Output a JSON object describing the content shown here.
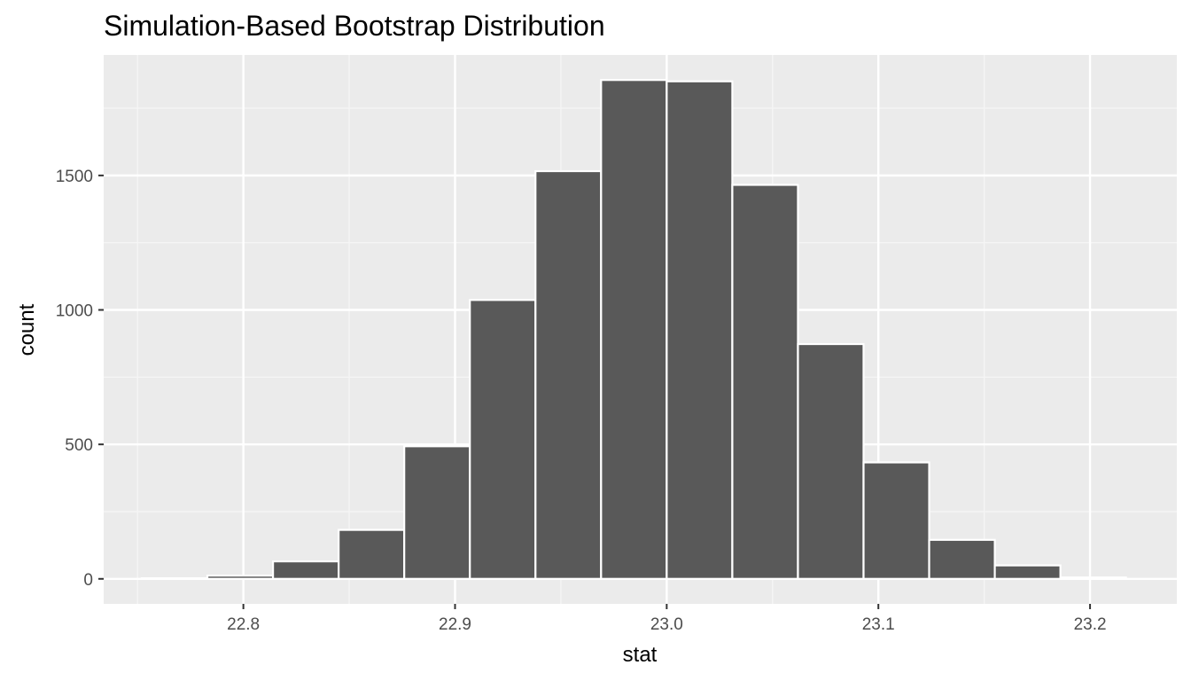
{
  "chart_data": {
    "type": "bar",
    "title": "Simulation-Based Bootstrap Distribution",
    "xlabel": "stat",
    "ylabel": "count",
    "bins": [
      {
        "x_min": 22.752,
        "x_max": 22.783,
        "count": 2
      },
      {
        "x_min": 22.783,
        "x_max": 22.814,
        "count": 12
      },
      {
        "x_min": 22.814,
        "x_max": 22.845,
        "count": 65
      },
      {
        "x_min": 22.845,
        "x_max": 22.876,
        "count": 182
      },
      {
        "x_min": 22.876,
        "x_max": 22.907,
        "count": 493
      },
      {
        "x_min": 22.907,
        "x_max": 22.938,
        "count": 1037
      },
      {
        "x_min": 22.938,
        "x_max": 22.969,
        "count": 1516
      },
      {
        "x_min": 22.969,
        "x_max": 23.0,
        "count": 1855
      },
      {
        "x_min": 23.0,
        "x_max": 23.031,
        "count": 1850
      },
      {
        "x_min": 23.031,
        "x_max": 23.062,
        "count": 1465
      },
      {
        "x_min": 23.062,
        "x_max": 23.093,
        "count": 873
      },
      {
        "x_min": 23.093,
        "x_max": 23.124,
        "count": 433
      },
      {
        "x_min": 23.124,
        "x_max": 23.155,
        "count": 145
      },
      {
        "x_min": 23.155,
        "x_max": 23.186,
        "count": 50
      },
      {
        "x_min": 23.186,
        "x_max": 23.217,
        "count": 5
      }
    ],
    "xlim": [
      22.734,
      23.241
    ],
    "ylim": [
      -93,
      1948
    ],
    "x_ticks": [
      22.8,
      22.9,
      23.0,
      23.1,
      23.2
    ],
    "x_tick_labels": [
      "22.8",
      "22.9",
      "23.0",
      "23.1",
      "23.2"
    ],
    "y_ticks": [
      0,
      500,
      1000,
      1500
    ],
    "y_tick_labels": [
      "0",
      "500",
      "1000",
      "1500"
    ],
    "grid": true,
    "legend": "none",
    "colors": {
      "bar_fill": "#595959",
      "bar_stroke": "#ffffff",
      "panel_background": "#ebebeb",
      "grid_major": "#ffffff",
      "grid_minor": "#f5f5f5",
      "axis_tick": "#333333"
    }
  }
}
